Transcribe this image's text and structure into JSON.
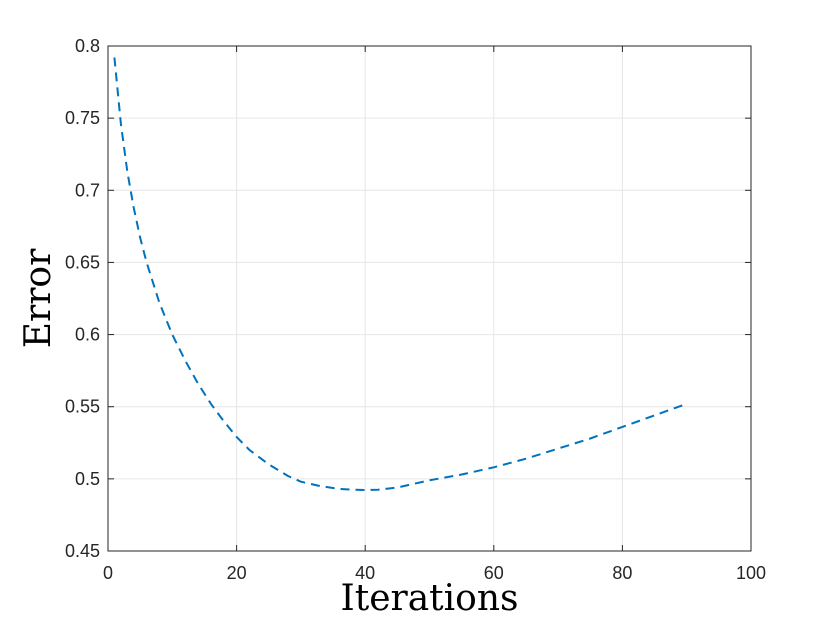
{
  "chart_data": {
    "type": "line",
    "title": "",
    "xlabel": "Iterations",
    "ylabel": "Error",
    "xlim": [
      0,
      100
    ],
    "ylim": [
      0.45,
      0.8
    ],
    "xticks": [
      0,
      20,
      40,
      60,
      80,
      100
    ],
    "xtick_labels": [
      "0",
      "20",
      "40",
      "60",
      "80",
      "100"
    ],
    "yticks": [
      0.45,
      0.5,
      0.55,
      0.6,
      0.65,
      0.7,
      0.75,
      0.8
    ],
    "ytick_labels": [
      "0.45",
      "0.5",
      "0.55",
      "0.6",
      "0.65",
      "0.7",
      "0.75",
      "0.8"
    ],
    "grid": true,
    "series": [
      {
        "line_style": "dashed",
        "color": "#0072BD",
        "x": [
          1,
          2,
          3,
          4,
          5,
          6,
          8,
          10,
          12,
          14,
          16,
          18,
          20,
          22,
          25,
          28,
          30,
          33,
          36,
          38,
          40,
          42,
          45,
          48,
          50,
          55,
          60,
          65,
          70,
          75,
          80,
          85,
          90
        ],
        "y": [
          0.792,
          0.746,
          0.713,
          0.688,
          0.667,
          0.65,
          0.622,
          0.6,
          0.582,
          0.566,
          0.552,
          0.54,
          0.529,
          0.52,
          0.51,
          0.502,
          0.498,
          0.495,
          0.493,
          0.4925,
          0.4923,
          0.4925,
          0.494,
          0.497,
          0.499,
          0.503,
          0.508,
          0.514,
          0.521,
          0.528,
          0.536,
          0.544,
          0.552
        ]
      }
    ]
  }
}
